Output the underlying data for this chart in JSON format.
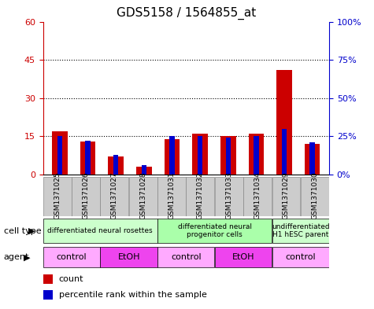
{
  "title": "GDS5158 / 1564855_at",
  "samples": [
    "GSM1371025",
    "GSM1371026",
    "GSM1371027",
    "GSM1371028",
    "GSM1371031",
    "GSM1371032",
    "GSM1371033",
    "GSM1371034",
    "GSM1371029",
    "GSM1371030"
  ],
  "counts": [
    17,
    13,
    7,
    3,
    14,
    16,
    15,
    16,
    41,
    12
  ],
  "percentiles": [
    25,
    22,
    13,
    6,
    25,
    25,
    24,
    25,
    30,
    21
  ],
  "ylim_left": [
    0,
    60
  ],
  "ylim_right": [
    0,
    100
  ],
  "yticks_left": [
    0,
    15,
    30,
    45,
    60
  ],
  "yticks_right": [
    0,
    25,
    50,
    75,
    100
  ],
  "ytick_labels_left": [
    "0",
    "15",
    "30",
    "45",
    "60"
  ],
  "ytick_labels_right": [
    "0%",
    "25%",
    "50%",
    "75%",
    "100%"
  ],
  "cell_type_groups": [
    {
      "label": "differentiated neural rosettes",
      "start": 0,
      "end": 4,
      "color": "#ccffcc"
    },
    {
      "label": "differentiated neural\nprogenitor cells",
      "start": 4,
      "end": 8,
      "color": "#aaffaa"
    },
    {
      "label": "undifferentiated\nH1 hESC parent",
      "start": 8,
      "end": 10,
      "color": "#ccffcc"
    }
  ],
  "agent_groups": [
    {
      "label": "control",
      "start": 0,
      "end": 2,
      "color": "#ffaaff"
    },
    {
      "label": "EtOH",
      "start": 2,
      "end": 4,
      "color": "#ee44ee"
    },
    {
      "label": "control",
      "start": 4,
      "end": 6,
      "color": "#ffaaff"
    },
    {
      "label": "EtOH",
      "start": 6,
      "end": 8,
      "color": "#ee44ee"
    },
    {
      "label": "control",
      "start": 8,
      "end": 10,
      "color": "#ffaaff"
    }
  ],
  "bar_color_red": "#cc0000",
  "bar_color_blue": "#0000cc",
  "bg_color": "#ffffff",
  "cell_type_label": "cell type",
  "agent_label": "agent",
  "legend_count": "count",
  "legend_percentile": "percentile rank within the sample",
  "sample_bg_color": "#cccccc",
  "sample_border_color": "#888888",
  "title_fontsize": 11,
  "tick_fontsize": 8,
  "sample_label_fontsize": 6.5
}
